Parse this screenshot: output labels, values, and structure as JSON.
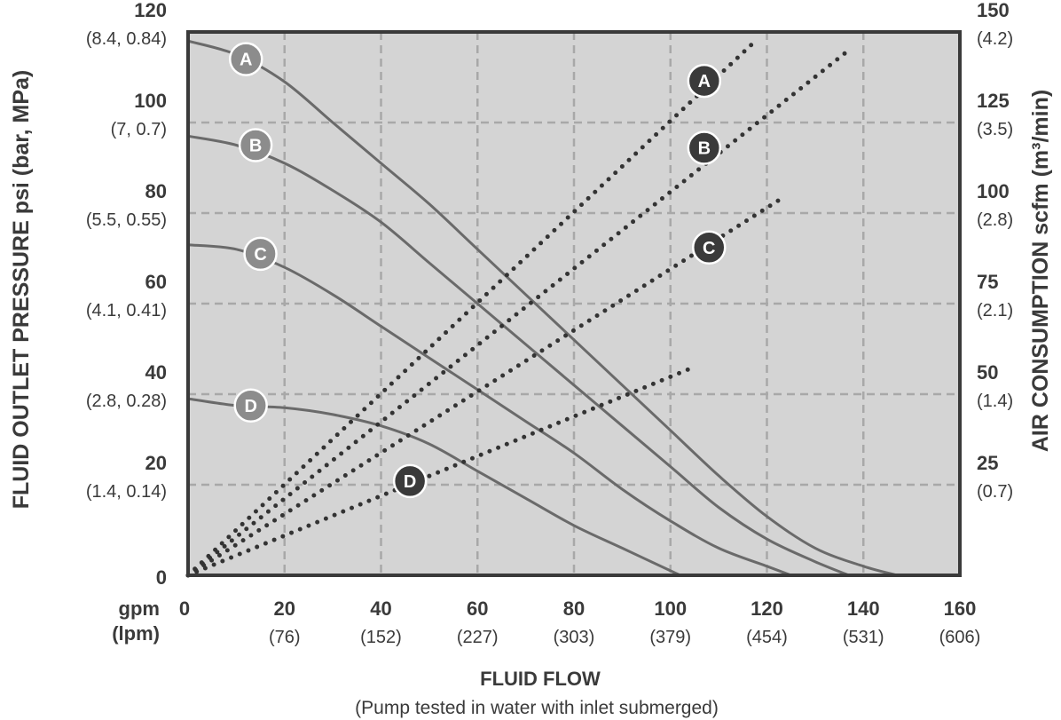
{
  "chart_data": {
    "type": "line",
    "title": "",
    "xlabel": "FLUID FLOW",
    "xlabel_sub": "(Pump tested in water with inlet submerged)",
    "ylabel": "FLUID OUTLET PRESSURE psi (bar, MPa)",
    "y2label": "AIR CONSUMPTION scfm (m³/min)",
    "x_unit_primary": "gpm",
    "x_unit_secondary": "(lpm)",
    "xlim": [
      0,
      160
    ],
    "ylim": [
      0,
      120
    ],
    "y2lim": [
      0,
      150
    ],
    "grid": true,
    "x_ticks": [
      {
        "value": 0,
        "label": "0",
        "sub": ""
      },
      {
        "value": 20,
        "label": "20",
        "sub": "(76)"
      },
      {
        "value": 40,
        "label": "40",
        "sub": "(152)"
      },
      {
        "value": 60,
        "label": "60",
        "sub": "(227)"
      },
      {
        "value": 80,
        "label": "80",
        "sub": "(303)"
      },
      {
        "value": 100,
        "label": "100",
        "sub": "(379)"
      },
      {
        "value": 120,
        "label": "120",
        "sub": "(454)"
      },
      {
        "value": 140,
        "label": "140",
        "sub": "(531)"
      },
      {
        "value": 160,
        "label": "160",
        "sub": "(606)"
      }
    ],
    "y_ticks": [
      {
        "value": 0,
        "label": "0",
        "sub": ""
      },
      {
        "value": 20,
        "label": "20",
        "sub": "(1.4, 0.14)"
      },
      {
        "value": 40,
        "label": "40",
        "sub": "(2.8, 0.28)"
      },
      {
        "value": 60,
        "label": "60",
        "sub": "(4.1, 0.41)"
      },
      {
        "value": 80,
        "label": "80",
        "sub": "(5.5, 0.55)"
      },
      {
        "value": 100,
        "label": "100",
        "sub": "(7, 0.7)"
      },
      {
        "value": 120,
        "label": "120",
        "sub": "(8.4, 0.84)"
      }
    ],
    "y2_ticks": [
      {
        "value": 25,
        "label": "25",
        "sub": "(0.7)"
      },
      {
        "value": 50,
        "label": "50",
        "sub": "(1.4)"
      },
      {
        "value": 75,
        "label": "75",
        "sub": "(2.1)"
      },
      {
        "value": 100,
        "label": "100",
        "sub": "(2.8)"
      },
      {
        "value": 125,
        "label": "125",
        "sub": "(3.5)"
      },
      {
        "value": 150,
        "label": "150",
        "sub": "(4.2)"
      }
    ],
    "pressure_series": [
      {
        "name": "A",
        "label_at": [
          12,
          114
        ],
        "points": [
          [
            0,
            118
          ],
          [
            10,
            115
          ],
          [
            20,
            109
          ],
          [
            30,
            100
          ],
          [
            40,
            91
          ],
          [
            50,
            82
          ],
          [
            60,
            72
          ],
          [
            70,
            62
          ],
          [
            80,
            52
          ],
          [
            90,
            42
          ],
          [
            100,
            32
          ],
          [
            110,
            22
          ],
          [
            120,
            13
          ],
          [
            130,
            6
          ],
          [
            140,
            2
          ],
          [
            147,
            0
          ]
        ]
      },
      {
        "name": "B",
        "label_at": [
          14,
          95
        ],
        "points": [
          [
            0,
            97
          ],
          [
            10,
            95
          ],
          [
            20,
            91
          ],
          [
            30,
            85
          ],
          [
            40,
            78
          ],
          [
            50,
            69
          ],
          [
            60,
            60
          ],
          [
            70,
            51
          ],
          [
            80,
            42
          ],
          [
            90,
            33
          ],
          [
            100,
            24
          ],
          [
            110,
            15
          ],
          [
            120,
            8
          ],
          [
            130,
            3
          ],
          [
            137,
            0
          ]
        ]
      },
      {
        "name": "C",
        "label_at": [
          15,
          71
        ],
        "points": [
          [
            0,
            73
          ],
          [
            10,
            72
          ],
          [
            20,
            68
          ],
          [
            30,
            62
          ],
          [
            40,
            55
          ],
          [
            50,
            48
          ],
          [
            60,
            41
          ],
          [
            70,
            34
          ],
          [
            80,
            27
          ],
          [
            90,
            19
          ],
          [
            100,
            12
          ],
          [
            110,
            6
          ],
          [
            120,
            2
          ],
          [
            125,
            0
          ]
        ]
      },
      {
        "name": "D",
        "label_at": [
          13,
          37.5
        ],
        "points": [
          [
            0,
            39
          ],
          [
            10,
            37.5
          ],
          [
            20,
            37
          ],
          [
            30,
            35.5
          ],
          [
            40,
            33
          ],
          [
            50,
            29
          ],
          [
            60,
            23
          ],
          [
            70,
            17
          ],
          [
            80,
            11
          ],
          [
            90,
            6
          ],
          [
            100,
            1
          ],
          [
            102,
            0
          ]
        ]
      }
    ],
    "air_series": [
      {
        "name": "A",
        "label_at": [
          107,
          136.5
        ],
        "points": [
          [
            0,
            0
          ],
          [
            118,
            148
          ]
        ]
      },
      {
        "name": "B",
        "label_at": [
          107,
          118
        ],
        "points": [
          [
            0,
            0
          ],
          [
            137,
            145
          ]
        ]
      },
      {
        "name": "C",
        "label_at": [
          108,
          90.5
        ],
        "points": [
          [
            0,
            0
          ],
          [
            123,
            104
          ]
        ]
      },
      {
        "name": "D",
        "label_at": [
          46,
          26
        ],
        "points": [
          [
            0,
            0
          ],
          [
            104,
            57
          ]
        ]
      }
    ],
    "colors": {
      "plot_bg": "#d4d4d4",
      "grid": "#a8a8a8",
      "frame": "#3a3a3a",
      "pressure_line": "#6a6a6a",
      "pressure_marker": "#8c8c8c",
      "air_dots": "#333333",
      "air_marker": "#3a3a3a",
      "text": "#3a3a3a"
    }
  }
}
